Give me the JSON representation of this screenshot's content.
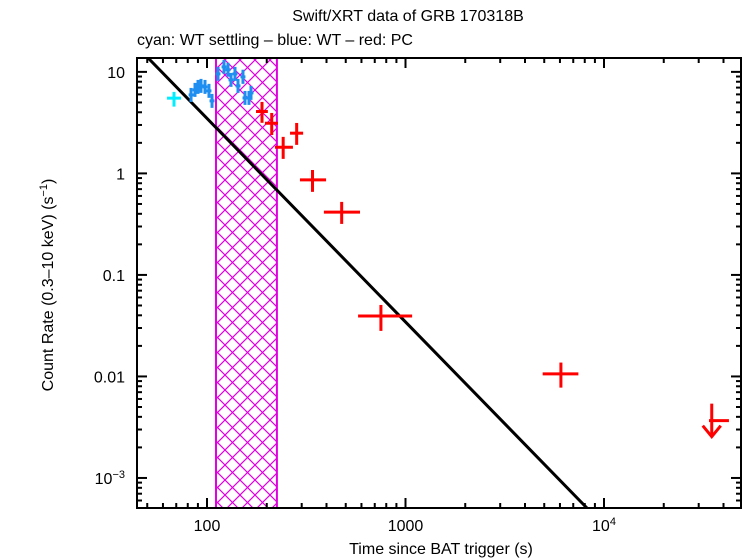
{
  "chart_data": {
    "type": "scatter",
    "title": "Swift/XRT data of GRB 170318B",
    "subtitle": "cyan: WT settling – blue: WT – red: PC",
    "xlabel": "Time since BAT trigger (s)",
    "ylabel": {
      "text": "Count Rate (0.3–10 keV) (s",
      "superscript": "−1",
      "suffix": ")"
    },
    "xscale": "log",
    "yscale": "log",
    "xlim": [
      44.4,
      49000
    ],
    "ylim": [
      0.000506,
      13.7
    ],
    "grid": false,
    "legend_placement": "top-left (subtitle line)",
    "minor_ticks": "log",
    "xticks": [
      {
        "value": 100,
        "label": "100"
      },
      {
        "value": 1000,
        "label": "1000"
      },
      {
        "value": 10000,
        "label": "10",
        "superscript": "4"
      }
    ],
    "yticks": [
      {
        "value": 10,
        "label": "10"
      },
      {
        "value": 1,
        "label": "1"
      },
      {
        "value": 0.1,
        "label": "0.1"
      },
      {
        "value": 0.01,
        "label": "0.01"
      },
      {
        "value": 0.001,
        "label": "10",
        "superscript": "−3"
      }
    ],
    "shaded_region": {
      "x": [
        111,
        225
      ],
      "pattern": "crosshatch",
      "color": "#e000e0"
    },
    "model": {
      "color": "#000000",
      "points": [
        [
          50.5,
          13.7
        ],
        [
          8206,
          0.000506
        ]
      ]
    },
    "series": [
      {
        "key": "wt-settling",
        "name": "WT settling",
        "color": "#00eeff",
        "points": [
          {
            "x": 68.2,
            "xlo": 62.9,
            "xhi": 74.0,
            "y": 5.51,
            "ylo": 4.55,
            "yhi": 6.35
          }
        ]
      },
      {
        "key": "wt",
        "name": "WT",
        "color": "#1e8ff0",
        "points": [
          {
            "x": 83.1,
            "xlo": 80.8,
            "xhi": 85.5,
            "y": 5.93,
            "ylo": 5.06,
            "yhi": 6.95
          },
          {
            "x": 87.0,
            "xlo": 84.6,
            "xhi": 89.5,
            "y": 6.65,
            "ylo": 5.67,
            "yhi": 7.79
          },
          {
            "x": 90.1,
            "xlo": 87.6,
            "xhi": 92.7,
            "y": 7.11,
            "ylo": 6.07,
            "yhi": 8.33
          },
          {
            "x": 93.3,
            "xlo": 90.7,
            "xhi": 96.0,
            "y": 7.28,
            "ylo": 6.21,
            "yhi": 8.53
          },
          {
            "x": 97.7,
            "xlo": 95.0,
            "xhi": 100.5,
            "y": 7.11,
            "ylo": 6.07,
            "yhi": 8.33
          },
          {
            "x": 102.3,
            "xlo": 99.4,
            "xhi": 105.3,
            "y": 6.5,
            "ylo": 5.55,
            "yhi": 7.62
          },
          {
            "x": 106.0,
            "xlo": 103.0,
            "xhi": 109.1,
            "y": 5.18,
            "ylo": 4.42,
            "yhi": 6.07
          },
          {
            "x": 113.6,
            "xlo": 110.4,
            "xhi": 116.9,
            "y": 9.56,
            "ylo": 8.16,
            "yhi": 11.2
          },
          {
            "x": 121.8,
            "xlo": 118.4,
            "xhi": 125.3,
            "y": 11.2,
            "ylo": 9.56,
            "yhi": 13.1
          },
          {
            "x": 127.6,
            "xlo": 124.0,
            "xhi": 131.3,
            "y": 10.5,
            "ylo": 8.96,
            "yhi": 12.3
          },
          {
            "x": 132.1,
            "xlo": 128.4,
            "xhi": 135.9,
            "y": 8.34,
            "ylo": 7.12,
            "yhi": 9.77
          },
          {
            "x": 138.4,
            "xlo": 134.5,
            "xhi": 142.4,
            "y": 9.56,
            "ylo": 8.16,
            "yhi": 11.2
          },
          {
            "x": 143.3,
            "xlo": 139.3,
            "xhi": 147.5,
            "y": 7.28,
            "ylo": 6.21,
            "yhi": 8.53
          },
          {
            "x": 151.8,
            "xlo": 147.5,
            "xhi": 156.2,
            "y": 8.93,
            "ylo": 7.62,
            "yhi": 10.5
          },
          {
            "x": 155.4,
            "xlo": 151.0,
            "xhi": 159.9,
            "y": 5.54,
            "ylo": 4.73,
            "yhi": 6.49
          },
          {
            "x": 162.7,
            "xlo": 158.1,
            "xhi": 167.4,
            "y": 5.54,
            "ylo": 4.73,
            "yhi": 6.49
          },
          {
            "x": 166.6,
            "xlo": 161.9,
            "xhi": 171.4,
            "y": 6.21,
            "ylo": 5.3,
            "yhi": 7.28
          }
        ]
      },
      {
        "key": "pc",
        "name": "PC",
        "color": "#ff0000",
        "points": [
          {
            "x": 189.3,
            "xlo": 176.6,
            "xhi": 202.6,
            "y": 4.07,
            "ylo": 3.15,
            "yhi": 5.06
          },
          {
            "x": 211.9,
            "xlo": 195.9,
            "xhi": 227.9,
            "y": 3.12,
            "ylo": 2.39,
            "yhi": 3.94
          },
          {
            "x": 242,
            "xlo": 220,
            "xhi": 271,
            "y": 1.81,
            "ylo": 1.39,
            "yhi": 2.29
          },
          {
            "x": 283,
            "xlo": 262,
            "xhi": 305,
            "y": 2.49,
            "ylo": 1.91,
            "yhi": 3.14
          },
          {
            "x": 340,
            "xlo": 294,
            "xhi": 398,
            "y": 0.863,
            "ylo": 0.658,
            "yhi": 1.08
          },
          {
            "x": 477,
            "xlo": 388,
            "xhi": 590,
            "y": 0.415,
            "ylo": 0.318,
            "yhi": 0.524
          },
          {
            "x": 752,
            "xlo": 577,
            "xhi": 1080,
            "y": 0.0394,
            "ylo": 0.0281,
            "yhi": 0.0506
          },
          {
            "x": 6067,
            "xlo": 4910,
            "xhi": 7430,
            "y": 0.0106,
            "ylo": 0.00776,
            "yhi": 0.0137
          }
        ],
        "upper_limits": [
          {
            "x": 34900,
            "xlo": 33800,
            "xhi": 42600,
            "y": 0.00367
          }
        ]
      }
    ]
  }
}
